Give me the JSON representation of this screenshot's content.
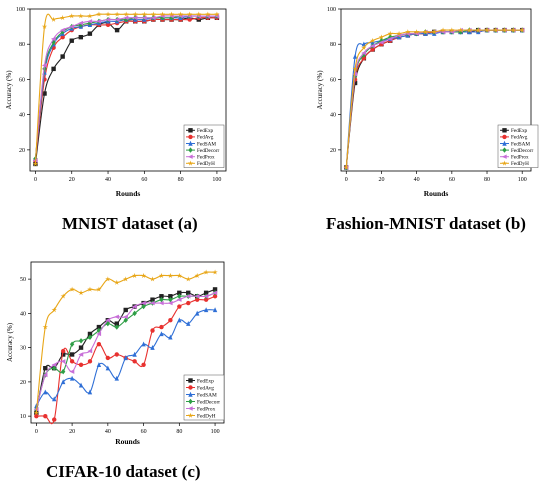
{
  "captions": {
    "a": "MNIST dataset (a)",
    "b": "Fashion-MNIST dataset (b)",
    "c": "CIFAR-10 dataset (c)"
  },
  "chart_data": [
    {
      "type": "line",
      "xlabel": "Rounds",
      "ylabel": "Accuracy (%)",
      "xlim": [
        -3,
        105
      ],
      "ylim": [
        8,
        100
      ],
      "xticks": [
        0,
        20,
        40,
        60,
        80,
        100
      ],
      "yticks": [
        20,
        40,
        60,
        80,
        100
      ],
      "legend_position": "bottom-right",
      "x": [
        0,
        5,
        10,
        15,
        20,
        25,
        30,
        35,
        40,
        45,
        50,
        55,
        60,
        65,
        70,
        75,
        80,
        85,
        90,
        95,
        100
      ],
      "series": [
        {
          "name": "FedExp",
          "color": "#222222",
          "marker": "square",
          "values": [
            12,
            52,
            66,
            73,
            82,
            84,
            86,
            91,
            92,
            88,
            93,
            93,
            93,
            94,
            94,
            94,
            94,
            95,
            94,
            95,
            95
          ]
        },
        {
          "name": "FedAvg",
          "color": "#e8312f",
          "marker": "circle",
          "values": [
            14,
            60,
            78,
            84,
            88,
            90,
            91,
            91,
            91,
            92,
            93,
            93,
            93,
            94,
            94,
            94,
            94,
            94,
            95,
            95,
            95
          ]
        },
        {
          "name": "FedSAM",
          "color": "#2f6fd6",
          "marker": "triangle",
          "values": [
            15,
            64,
            80,
            86,
            89,
            90,
            91,
            92,
            93,
            93,
            94,
            94,
            94,
            95,
            95,
            95,
            95,
            96,
            96,
            96,
            96
          ]
        },
        {
          "name": "FedDecorr",
          "color": "#2e9e46",
          "marker": "diamond",
          "values": [
            15,
            66,
            81,
            87,
            90,
            91,
            92,
            93,
            94,
            94,
            94,
            95,
            95,
            95,
            95,
            95,
            96,
            96,
            96,
            96,
            96
          ]
        },
        {
          "name": "FedProx",
          "color": "#c86fd8",
          "marker": "triangle-left",
          "values": [
            14,
            68,
            83,
            88,
            90,
            92,
            93,
            93,
            94,
            94,
            95,
            95,
            95,
            95,
            96,
            96,
            96,
            96,
            96,
            96,
            96
          ]
        },
        {
          "name": "FedDyH",
          "color": "#e8a617",
          "marker": "star",
          "values": [
            12,
            90,
            94,
            95,
            96,
            96,
            96,
            97,
            97,
            97,
            97,
            97,
            97,
            97,
            97,
            97,
            97,
            97,
            97,
            97,
            97
          ]
        }
      ]
    },
    {
      "type": "line",
      "xlabel": "Rounds",
      "ylabel": "Accuracy (%)",
      "xlim": [
        -3,
        105
      ],
      "ylim": [
        8,
        100
      ],
      "xticks": [
        0,
        20,
        40,
        60,
        80,
        100
      ],
      "yticks": [
        20,
        40,
        60,
        80,
        100
      ],
      "legend_position": "bottom-right",
      "x": [
        0,
        5,
        10,
        15,
        20,
        25,
        30,
        35,
        40,
        45,
        50,
        55,
        60,
        65,
        70,
        75,
        80,
        85,
        90,
        95,
        100
      ],
      "series": [
        {
          "name": "FedExp",
          "color": "#222222",
          "marker": "square",
          "values": [
            10,
            58,
            72,
            77,
            80,
            82,
            84,
            85,
            86,
            86,
            87,
            87,
            87,
            87,
            87,
            88,
            88,
            88,
            88,
            88,
            88
          ]
        },
        {
          "name": "FedAvg",
          "color": "#e8312f",
          "marker": "circle",
          "values": [
            10,
            60,
            72,
            77,
            80,
            82,
            84,
            85,
            86,
            86,
            87,
            87,
            87,
            87,
            87,
            87,
            88,
            88,
            88,
            88,
            88
          ]
        },
        {
          "name": "FedSAM",
          "color": "#2f6fd6",
          "marker": "triangle",
          "values": [
            10,
            73,
            80,
            81,
            82,
            83,
            84,
            85,
            86,
            86,
            86,
            87,
            87,
            87,
            87,
            87,
            88,
            88,
            88,
            88,
            88
          ]
        },
        {
          "name": "FedDecorr",
          "color": "#2e9e46",
          "marker": "diamond",
          "values": [
            10,
            62,
            74,
            79,
            82,
            84,
            85,
            86,
            86,
            87,
            87,
            87,
            87,
            87,
            88,
            88,
            88,
            88,
            88,
            88,
            88
          ]
        },
        {
          "name": "FedProx",
          "color": "#c86fd8",
          "marker": "triangle-left",
          "values": [
            10,
            63,
            75,
            79,
            81,
            83,
            85,
            86,
            86,
            87,
            87,
            87,
            87,
            88,
            88,
            88,
            88,
            88,
            88,
            88,
            88
          ]
        },
        {
          "name": "FedDyH",
          "color": "#e8a617",
          "marker": "star",
          "values": [
            10,
            66,
            78,
            82,
            84,
            86,
            86,
            87,
            87,
            87,
            87,
            88,
            88,
            88,
            88,
            88,
            88,
            88,
            88,
            88,
            88
          ]
        }
      ]
    },
    {
      "type": "line",
      "xlabel": "Rounds",
      "ylabel": "Accuracy (%)",
      "xlim": [
        -3,
        105
      ],
      "ylim": [
        8,
        55
      ],
      "xticks": [
        0,
        20,
        40,
        60,
        80,
        100
      ],
      "yticks": [
        10,
        20,
        30,
        40,
        50
      ],
      "legend_position": "bottom-right",
      "x": [
        0,
        5,
        10,
        15,
        20,
        25,
        30,
        35,
        40,
        45,
        50,
        55,
        60,
        65,
        70,
        75,
        80,
        85,
        90,
        95,
        100
      ],
      "series": [
        {
          "name": "FedExp",
          "color": "#222222",
          "marker": "square",
          "values": [
            11,
            24,
            24,
            28,
            28,
            30,
            34,
            36,
            38,
            37,
            41,
            42,
            43,
            44,
            45,
            45,
            46,
            46,
            45,
            46,
            47
          ]
        },
        {
          "name": "FedAvg",
          "color": "#e8312f",
          "marker": "circle",
          "values": [
            10,
            10,
            9,
            29,
            26,
            25,
            26,
            31,
            27,
            28,
            27,
            26,
            25,
            35,
            36,
            38,
            42,
            43,
            44,
            44,
            45
          ]
        },
        {
          "name": "FedSAM",
          "color": "#2f6fd6",
          "marker": "triangle",
          "values": [
            13,
            17,
            15,
            20,
            21,
            19,
            17,
            25,
            24,
            21,
            27,
            28,
            31,
            30,
            34,
            33,
            38,
            37,
            40,
            41,
            41
          ]
        },
        {
          "name": "FedDecorr",
          "color": "#2e9e46",
          "marker": "diamond",
          "values": [
            12,
            22,
            24,
            23,
            31,
            32,
            33,
            35,
            37,
            36,
            38,
            40,
            42,
            43,
            44,
            44,
            45,
            45,
            45,
            45,
            46
          ]
        },
        {
          "name": "FedProx",
          "color": "#c86fd8",
          "marker": "triangle-left",
          "values": [
            12,
            22,
            25,
            26,
            23,
            28,
            29,
            34,
            38,
            39,
            39,
            42,
            43,
            43,
            43,
            43,
            44,
            45,
            45,
            45,
            46
          ]
        },
        {
          "name": "FedDyH",
          "color": "#e8a617",
          "marker": "star",
          "values": [
            11,
            36,
            41,
            45,
            47,
            46,
            47,
            47,
            50,
            49,
            50,
            51,
            51,
            50,
            51,
            51,
            51,
            50,
            51,
            52,
            52
          ]
        }
      ]
    }
  ]
}
